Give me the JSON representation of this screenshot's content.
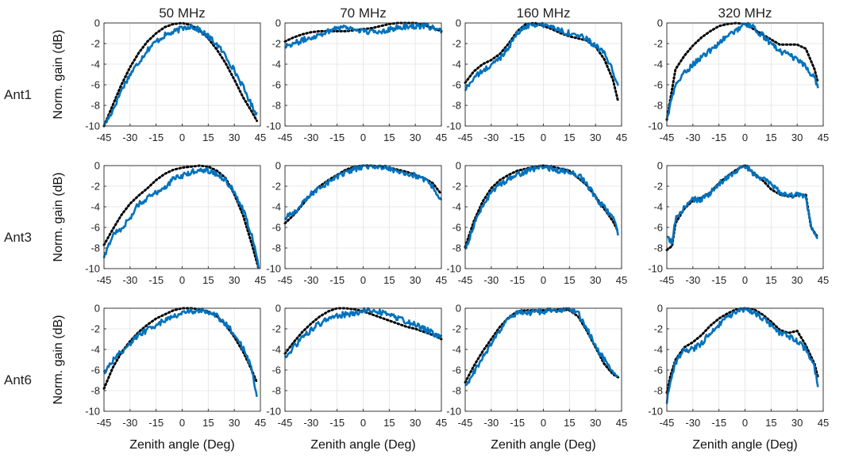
{
  "chart_data": {
    "type": "line",
    "layout": "grid 3x4",
    "columns": [
      "50 MHz",
      "70 MHz",
      "160 MHz",
      "320 MHz"
    ],
    "rows": [
      "Ant1",
      "Ant3",
      "Ant6"
    ],
    "xlabel": "Zenith angle (Deg)",
    "ylabel": "Norm. gain (dB)",
    "xlim": [
      -45,
      45
    ],
    "ylim": [
      -10,
      0
    ],
    "xticks": [
      -45,
      -30,
      -15,
      0,
      15,
      30,
      45
    ],
    "yticks": [
      0,
      -2,
      -4,
      -6,
      -8,
      -10
    ],
    "grid": true,
    "series_styles": {
      "measured": {
        "color": "#0072BD",
        "style": "solid"
      },
      "simulated": {
        "color": "#000000",
        "style": "dotted"
      }
    },
    "panels": [
      {
        "row": "Ant1",
        "col": "50 MHz",
        "x": [
          -45,
          -40,
          -35,
          -30,
          -25,
          -20,
          -15,
          -10,
          -5,
          0,
          5,
          10,
          15,
          20,
          25,
          30,
          35,
          40,
          43
        ],
        "measured": [
          -10,
          -8.5,
          -6.5,
          -5,
          -3.8,
          -2.6,
          -1.8,
          -1.2,
          -0.9,
          -0.5,
          -0.3,
          -0.7,
          -1.3,
          -2.1,
          -3.2,
          -4.6,
          -6.2,
          -8,
          -8.8
        ],
        "simulated": [
          -10,
          -8,
          -6,
          -4.3,
          -2.9,
          -1.8,
          -1,
          -0.4,
          -0.1,
          0,
          -0.2,
          -0.7,
          -1.5,
          -2.6,
          -3.9,
          -5.5,
          -7.2,
          -8.6,
          -9.5
        ]
      },
      {
        "row": "Ant1",
        "col": "70 MHz",
        "x": [
          -45,
          -40,
          -35,
          -30,
          -25,
          -20,
          -15,
          -10,
          -5,
          0,
          5,
          10,
          15,
          20,
          25,
          30,
          35,
          40,
          45
        ],
        "measured": [
          -2.2,
          -2,
          -1.7,
          -1.4,
          -1.1,
          -0.8,
          -0.4,
          -0.4,
          -0.6,
          -0.8,
          -0.9,
          -0.8,
          -0.6,
          -0.5,
          -0.3,
          -0.3,
          -0.3,
          -0.4,
          -0.9
        ],
        "simulated": [
          -1.8,
          -1.4,
          -1.1,
          -0.9,
          -0.8,
          -0.8,
          -0.8,
          -0.8,
          -0.7,
          -0.6,
          -0.5,
          -0.3,
          -0.1,
          0,
          0,
          0,
          -0.2,
          -0.5,
          -0.8
        ]
      },
      {
        "row": "Ant1",
        "col": "160 MHz",
        "x": [
          -45,
          -40,
          -35,
          -30,
          -25,
          -20,
          -15,
          -10,
          -5,
          0,
          5,
          10,
          15,
          20,
          25,
          30,
          35,
          40,
          43
        ],
        "measured": [
          -6.5,
          -5.3,
          -4.7,
          -4.1,
          -3.4,
          -2.3,
          -1,
          -0.3,
          -0.1,
          -0.2,
          -0.4,
          -0.7,
          -1,
          -1.2,
          -1.6,
          -2.2,
          -3,
          -4.6,
          -6.3
        ],
        "simulated": [
          -5.8,
          -4.7,
          -4,
          -3.6,
          -3,
          -2,
          -0.8,
          -0.1,
          0,
          -0.3,
          -0.6,
          -1,
          -1.3,
          -1.5,
          -1.7,
          -2.3,
          -3.5,
          -5.5,
          -7.6
        ]
      },
      {
        "row": "Ant1",
        "col": "320 MHz",
        "x": [
          -45,
          -40,
          -35,
          -30,
          -25,
          -20,
          -15,
          -10,
          -5,
          0,
          5,
          10,
          15,
          20,
          25,
          30,
          35,
          40,
          42
        ],
        "measured": [
          -9.3,
          -6,
          -4.9,
          -4,
          -3.3,
          -2.7,
          -1.9,
          -1.3,
          -0.7,
          0,
          -0.5,
          -1.2,
          -2,
          -2.7,
          -3.1,
          -3.6,
          -4.3,
          -5.3,
          -6.3
        ],
        "simulated": [
          -9.4,
          -4.5,
          -3.2,
          -2.2,
          -1.4,
          -0.8,
          -0.3,
          -0.1,
          0,
          -0.1,
          -0.6,
          -1.1,
          -1.6,
          -2.1,
          -2.1,
          -2.1,
          -2.5,
          -4.5,
          -5.8
        ]
      },
      {
        "row": "Ant3",
        "col": "50 MHz",
        "x": [
          -45,
          -40,
          -35,
          -30,
          -25,
          -20,
          -15,
          -10,
          -5,
          0,
          5,
          10,
          15,
          20,
          25,
          30,
          35,
          40,
          44
        ],
        "measured": [
          -9,
          -6.7,
          -6.1,
          -5.1,
          -3.7,
          -3.2,
          -2.6,
          -2.1,
          -1.3,
          -1,
          -0.7,
          -0.3,
          -0.5,
          -0.8,
          -1.4,
          -2.6,
          -4.3,
          -6.7,
          -9.8
        ],
        "simulated": [
          -7.7,
          -6.2,
          -4.8,
          -3.7,
          -2.9,
          -2.2,
          -1.4,
          -0.8,
          -0.4,
          -0.2,
          -0.1,
          0,
          -0.1,
          -0.5,
          -1.2,
          -2.8,
          -4.8,
          -7.6,
          -10
        ]
      },
      {
        "row": "Ant3",
        "col": "70 MHz",
        "x": [
          -45,
          -40,
          -35,
          -30,
          -25,
          -20,
          -15,
          -10,
          -5,
          0,
          5,
          10,
          15,
          20,
          25,
          30,
          35,
          40,
          45
        ],
        "measured": [
          -5.1,
          -4.6,
          -3.7,
          -2.8,
          -2.1,
          -1.6,
          -1.1,
          -0.7,
          -0.4,
          -0.1,
          0,
          -0.1,
          -0.3,
          -0.5,
          -0.7,
          -1,
          -1.4,
          -2,
          -3.4
        ],
        "simulated": [
          -5.6,
          -4.8,
          -3.8,
          -2.8,
          -2,
          -1.4,
          -0.9,
          -0.4,
          -0.1,
          0,
          0,
          -0.1,
          -0.2,
          -0.4,
          -0.6,
          -0.9,
          -1.2,
          -1.7,
          -2.8
        ]
      },
      {
        "row": "Ant3",
        "col": "160 MHz",
        "x": [
          -45,
          -40,
          -35,
          -30,
          -25,
          -20,
          -15,
          -10,
          -5,
          0,
          5,
          10,
          15,
          20,
          25,
          30,
          35,
          40,
          43
        ],
        "measured": [
          -8.2,
          -5.8,
          -3.9,
          -2.6,
          -1.8,
          -1.3,
          -0.9,
          -0.6,
          -0.3,
          -0.1,
          -0.3,
          -0.5,
          -0.6,
          -0.9,
          -1.8,
          -3.1,
          -4.1,
          -5,
          -6.6
        ],
        "simulated": [
          -7.9,
          -5.4,
          -3.5,
          -2.2,
          -1.4,
          -0.9,
          -0.5,
          -0.3,
          -0.1,
          0,
          -0.1,
          -0.3,
          -0.5,
          -1.2,
          -1.9,
          -3,
          -4.2,
          -5.4,
          -6.4
        ]
      },
      {
        "row": "Ant3",
        "col": "320 MHz",
        "x": [
          -45,
          -42,
          -40,
          -35,
          -30,
          -25,
          -20,
          -15,
          -10,
          -5,
          0,
          5,
          10,
          15,
          20,
          25,
          30,
          35,
          38,
          42
        ],
        "measured": [
          -7,
          -7.5,
          -5.2,
          -4.1,
          -3.3,
          -3.3,
          -2.7,
          -1.8,
          -1.1,
          -0.5,
          0,
          -0.8,
          -1.3,
          -1.8,
          -2.6,
          -3,
          -2.8,
          -3.2,
          -5.8,
          -7.2
        ],
        "simulated": [
          -8.2,
          -7.8,
          -5.6,
          -4.2,
          -3.4,
          -3.1,
          -2.6,
          -1.7,
          -1,
          -0.4,
          0,
          -0.7,
          -1.4,
          -2.3,
          -2.8,
          -3,
          -2.9,
          -2.8,
          -6,
          -7
        ]
      },
      {
        "row": "Ant6",
        "col": "50 MHz",
        "x": [
          -45,
          -40,
          -35,
          -30,
          -25,
          -20,
          -15,
          -10,
          -5,
          0,
          5,
          10,
          15,
          20,
          25,
          30,
          35,
          40,
          43
        ],
        "measured": [
          -6.2,
          -5.1,
          -4.2,
          -3.4,
          -2.6,
          -2.1,
          -1.6,
          -1.2,
          -0.7,
          -0.5,
          -0.3,
          -0.2,
          -0.4,
          -0.8,
          -1.5,
          -2.5,
          -3.9,
          -5.8,
          -8.5
        ],
        "simulated": [
          -7.8,
          -5.8,
          -4.3,
          -3.2,
          -2.3,
          -1.6,
          -1,
          -0.6,
          -0.2,
          0,
          0,
          -0.1,
          -0.3,
          -0.8,
          -1.6,
          -2.8,
          -4.2,
          -6,
          -7.2
        ]
      },
      {
        "row": "Ant6",
        "col": "70 MHz",
        "x": [
          -45,
          -40,
          -35,
          -30,
          -25,
          -20,
          -15,
          -10,
          -5,
          0,
          5,
          10,
          15,
          20,
          25,
          30,
          35,
          40,
          45
        ],
        "measured": [
          -4.8,
          -3.8,
          -2.9,
          -2.1,
          -1.5,
          -1,
          -0.7,
          -0.6,
          -0.5,
          -0.2,
          -0.2,
          -0.4,
          -0.7,
          -1,
          -1.3,
          -1.6,
          -2,
          -2.4,
          -2.8
        ],
        "simulated": [
          -4.4,
          -3.3,
          -2.3,
          -1.5,
          -0.8,
          -0.3,
          0,
          0,
          -0.1,
          -0.3,
          -0.6,
          -0.9,
          -1.2,
          -1.5,
          -1.8,
          -2,
          -2.3,
          -2.6,
          -3
        ]
      },
      {
        "row": "Ant6",
        "col": "160 MHz",
        "x": [
          -45,
          -40,
          -35,
          -30,
          -25,
          -20,
          -15,
          -10,
          -5,
          0,
          5,
          10,
          15,
          20,
          25,
          30,
          35,
          40,
          43
        ],
        "measured": [
          -7.7,
          -6.2,
          -4.8,
          -3.5,
          -2.2,
          -1,
          -0.4,
          -0.4,
          -0.4,
          -0.4,
          -0.2,
          -0.1,
          0,
          -0.5,
          -2,
          -3.6,
          -5,
          -6.2,
          -6.5
        ],
        "simulated": [
          -7.2,
          -5.6,
          -4.2,
          -3,
          -1.8,
          -0.9,
          -0.3,
          -0.2,
          -0.2,
          -0.2,
          -0.2,
          -0.1,
          -0.2,
          -0.8,
          -2.2,
          -3.8,
          -5.4,
          -6.4,
          -6.7
        ]
      },
      {
        "row": "Ant6",
        "col": "320 MHz",
        "x": [
          -45,
          -43,
          -40,
          -35,
          -30,
          -25,
          -20,
          -15,
          -10,
          -5,
          0,
          5,
          10,
          15,
          20,
          25,
          30,
          35,
          40,
          42
        ],
        "measured": [
          -9,
          -7.4,
          -5.3,
          -4,
          -4,
          -3.4,
          -2.4,
          -1.6,
          -0.9,
          -0.4,
          0,
          -0.4,
          -1,
          -1.6,
          -2.4,
          -2.7,
          -3.2,
          -4,
          -5.8,
          -7.4
        ],
        "simulated": [
          -8.2,
          -6.6,
          -5,
          -3.8,
          -3.3,
          -2.6,
          -1.7,
          -1,
          -0.5,
          -0.1,
          0,
          -0.1,
          -0.6,
          -1.3,
          -2.1,
          -2.4,
          -2.2,
          -3.6,
          -5.4,
          -6.7
        ]
      }
    ]
  }
}
